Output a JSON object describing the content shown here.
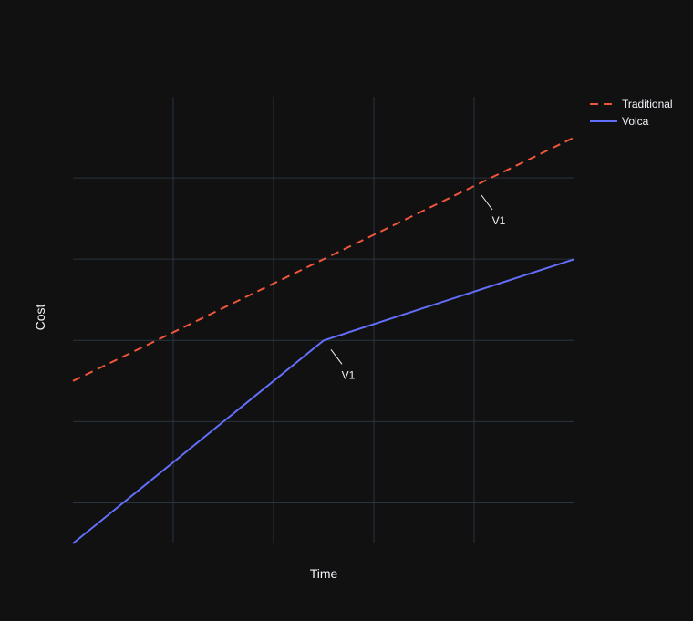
{
  "chart_data": {
    "type": "line",
    "title": "",
    "xlabel": "Time",
    "ylabel": "Cost",
    "xlim": [
      0,
      5
    ],
    "ylim": [
      0,
      5.5
    ],
    "show_tick_labels": false,
    "grid": true,
    "legend_position": "top-right",
    "series": [
      {
        "name": "Traditional",
        "x": [
          0,
          5
        ],
        "y": [
          2.0,
          5.0
        ],
        "color": "#EF553B",
        "dash": "dash"
      },
      {
        "name": "Volca",
        "x": [
          0,
          2.5,
          5
        ],
        "y": [
          0.0,
          2.5,
          3.5
        ],
        "color": "#636EFA",
        "dash": "solid"
      }
    ],
    "annotations": [
      {
        "text": "V1",
        "x": 2.5,
        "y": 2.5,
        "series": "Volca"
      },
      {
        "text": "V1",
        "x": 4.0,
        "y": 4.4,
        "series": "Traditional"
      }
    ],
    "colors": {
      "background": "#111111",
      "grid": "#283442",
      "text": "#f2f5fa"
    }
  }
}
